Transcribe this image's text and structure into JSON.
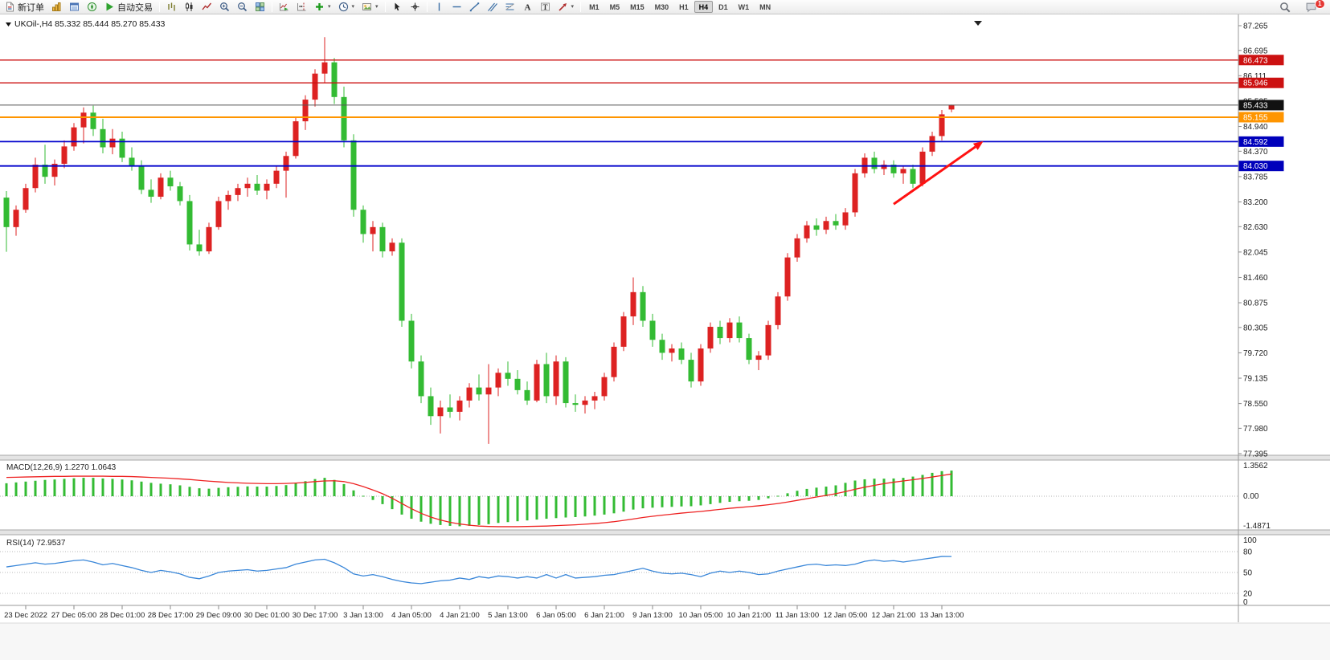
{
  "toolbar": {
    "new_order": "新订单",
    "auto_trading": "自动交易",
    "timeframes": [
      "M1",
      "M5",
      "M15",
      "M30",
      "H1",
      "H4",
      "D1",
      "W1",
      "MN"
    ],
    "active_timeframe": "H4",
    "notification_count": "1"
  },
  "chart_header": {
    "symbol_period": "UKOil-,H4",
    "ohlc": "85.332 85.444 85.270 85.433"
  },
  "chart_data": {
    "type": "candlestick",
    "symbol": "UKOil-",
    "timeframe": "H4",
    "price_axis": [
      87.265,
      86.695,
      86.111,
      85.525,
      84.94,
      84.37,
      83.785,
      83.2,
      82.63,
      82.045,
      81.46,
      80.875,
      80.305,
      79.72,
      79.135,
      78.55,
      77.98,
      77.395
    ],
    "levels": [
      {
        "price": 86.473,
        "color": "#cc1111",
        "badge": "#cc1111",
        "width": 1.4
      },
      {
        "price": 85.946,
        "color": "#cc1111",
        "badge": "#cc1111",
        "width": 1.4
      },
      {
        "price": 85.433,
        "color": "#555555",
        "badge": "#111111",
        "width": 1,
        "current": true
      },
      {
        "price": 85.155,
        "color": "#ff9500",
        "badge": "#ff9500",
        "width": 2
      },
      {
        "price": 84.592,
        "color": "#0000cc",
        "badge": "#0000bb",
        "width": 1.8
      },
      {
        "price": 84.03,
        "color": "#0000cc",
        "badge": "#0000bb",
        "width": 1.8
      }
    ],
    "current_price": 85.433,
    "candles": [
      [
        83.3,
        83.45,
        82.05,
        82.62
      ],
      [
        82.62,
        83.12,
        82.42,
        83.02
      ],
      [
        83.02,
        83.62,
        82.95,
        83.52
      ],
      [
        83.52,
        84.22,
        83.42,
        84.06
      ],
      [
        84.06,
        84.52,
        83.62,
        83.78
      ],
      [
        83.78,
        84.18,
        83.58,
        84.08
      ],
      [
        84.08,
        84.62,
        83.98,
        84.48
      ],
      [
        84.48,
        85.02,
        84.38,
        84.92
      ],
      [
        84.92,
        85.38,
        84.55,
        85.26
      ],
      [
        85.26,
        85.42,
        84.72,
        84.88
      ],
      [
        84.88,
        85.12,
        84.32,
        84.46
      ],
      [
        84.46,
        84.88,
        84.3,
        84.66
      ],
      [
        84.66,
        84.82,
        84.12,
        84.22
      ],
      [
        84.22,
        84.46,
        83.92,
        84.02
      ],
      [
        84.02,
        84.16,
        83.38,
        83.48
      ],
      [
        83.48,
        83.72,
        83.18,
        83.32
      ],
      [
        83.32,
        83.86,
        83.26,
        83.76
      ],
      [
        83.76,
        83.92,
        83.46,
        83.56
      ],
      [
        83.56,
        83.66,
        83.12,
        83.22
      ],
      [
        83.22,
        83.36,
        82.08,
        82.22
      ],
      [
        82.22,
        82.56,
        81.96,
        82.06
      ],
      [
        82.06,
        82.72,
        82.0,
        82.62
      ],
      [
        82.62,
        83.32,
        82.56,
        83.22
      ],
      [
        83.22,
        83.46,
        83.02,
        83.36
      ],
      [
        83.36,
        83.62,
        83.22,
        83.52
      ],
      [
        83.52,
        83.76,
        83.32,
        83.62
      ],
      [
        83.62,
        83.82,
        83.36,
        83.46
      ],
      [
        83.46,
        83.72,
        83.26,
        83.62
      ],
      [
        83.62,
        84.02,
        83.52,
        83.92
      ],
      [
        83.92,
        84.36,
        83.3,
        84.26
      ],
      [
        84.26,
        85.16,
        84.2,
        85.06
      ],
      [
        85.06,
        85.66,
        84.86,
        85.56
      ],
      [
        85.56,
        86.26,
        85.4,
        86.16
      ],
      [
        86.16,
        87.0,
        85.96,
        86.42
      ],
      [
        86.42,
        86.52,
        85.46,
        85.62
      ],
      [
        85.62,
        85.86,
        84.46,
        84.62
      ],
      [
        84.62,
        84.76,
        82.86,
        83.02
      ],
      [
        83.02,
        83.12,
        82.26,
        82.46
      ],
      [
        82.46,
        82.76,
        82.06,
        82.62
      ],
      [
        82.62,
        82.72,
        81.92,
        82.06
      ],
      [
        82.06,
        82.36,
        81.96,
        82.26
      ],
      [
        82.26,
        82.36,
        80.32,
        80.46
      ],
      [
        80.46,
        80.62,
        79.36,
        79.52
      ],
      [
        79.52,
        79.66,
        78.56,
        78.72
      ],
      [
        78.72,
        78.92,
        78.06,
        78.26
      ],
      [
        78.26,
        78.62,
        77.86,
        78.46
      ],
      [
        78.46,
        78.76,
        78.22,
        78.36
      ],
      [
        78.36,
        78.72,
        78.16,
        78.62
      ],
      [
        78.62,
        79.02,
        78.46,
        78.92
      ],
      [
        78.92,
        79.22,
        78.62,
        78.76
      ],
      [
        78.76,
        79.46,
        77.62,
        78.92
      ],
      [
        78.92,
        79.36,
        78.72,
        79.26
      ],
      [
        79.26,
        79.52,
        78.96,
        79.12
      ],
      [
        79.12,
        79.32,
        78.76,
        78.86
      ],
      [
        78.86,
        79.06,
        78.52,
        78.62
      ],
      [
        78.62,
        79.56,
        78.58,
        79.46
      ],
      [
        79.46,
        79.72,
        78.56,
        78.72
      ],
      [
        78.72,
        79.66,
        78.52,
        79.52
      ],
      [
        79.52,
        79.62,
        78.46,
        78.56
      ],
      [
        78.56,
        78.76,
        78.36,
        78.52
      ],
      [
        78.52,
        78.72,
        78.32,
        78.62
      ],
      [
        78.62,
        78.82,
        78.42,
        78.72
      ],
      [
        78.72,
        79.26,
        78.62,
        79.16
      ],
      [
        79.16,
        79.96,
        79.06,
        79.86
      ],
      [
        79.86,
        80.66,
        79.76,
        80.56
      ],
      [
        80.56,
        81.46,
        80.36,
        81.12
      ],
      [
        81.12,
        81.26,
        80.32,
        80.46
      ],
      [
        80.46,
        80.62,
        79.86,
        80.02
      ],
      [
        80.02,
        80.16,
        79.56,
        79.72
      ],
      [
        79.72,
        79.92,
        79.52,
        79.82
      ],
      [
        79.82,
        79.96,
        79.46,
        79.56
      ],
      [
        79.56,
        79.72,
        78.92,
        79.06
      ],
      [
        79.06,
        79.92,
        78.96,
        79.82
      ],
      [
        79.82,
        80.42,
        79.72,
        80.32
      ],
      [
        80.32,
        80.46,
        79.92,
        80.06
      ],
      [
        80.06,
        80.52,
        79.96,
        80.42
      ],
      [
        80.42,
        80.56,
        79.96,
        80.06
      ],
      [
        80.06,
        80.16,
        79.46,
        79.56
      ],
      [
        79.56,
        79.76,
        79.32,
        79.66
      ],
      [
        79.66,
        80.46,
        79.56,
        80.36
      ],
      [
        80.36,
        81.12,
        80.26,
        81.02
      ],
      [
        81.02,
        82.02,
        80.92,
        81.92
      ],
      [
        81.92,
        82.46,
        81.82,
        82.36
      ],
      [
        82.36,
        82.76,
        82.26,
        82.66
      ],
      [
        82.66,
        82.82,
        82.42,
        82.56
      ],
      [
        82.56,
        82.86,
        82.46,
        82.76
      ],
      [
        82.76,
        82.92,
        82.56,
        82.66
      ],
      [
        82.66,
        83.06,
        82.56,
        82.96
      ],
      [
        82.96,
        83.96,
        82.86,
        83.86
      ],
      [
        83.86,
        84.32,
        83.76,
        84.22
      ],
      [
        84.22,
        84.36,
        83.86,
        83.96
      ],
      [
        83.96,
        84.16,
        83.82,
        84.06
      ],
      [
        84.06,
        84.16,
        83.76,
        83.86
      ],
      [
        83.86,
        84.02,
        83.62,
        83.96
      ],
      [
        83.96,
        84.06,
        83.52,
        83.62
      ],
      [
        83.62,
        84.46,
        83.56,
        84.36
      ],
      [
        84.36,
        84.82,
        84.26,
        84.72
      ],
      [
        84.72,
        85.32,
        84.62,
        85.22
      ],
      [
        85.332,
        85.444,
        85.27,
        85.433
      ]
    ],
    "time_labels": [
      {
        "i": 2,
        "t": "23 Dec 2022"
      },
      {
        "i": 7,
        "t": "27 Dec 05:00"
      },
      {
        "i": 12,
        "t": "28 Dec 01:00"
      },
      {
        "i": 17,
        "t": "28 Dec 17:00"
      },
      {
        "i": 22,
        "t": "29 Dec 09:00"
      },
      {
        "i": 27,
        "t": "30 Dec 01:00"
      },
      {
        "i": 32,
        "t": "30 Dec 17:00"
      },
      {
        "i": 37,
        "t": "3 Jan 13:00"
      },
      {
        "i": 42,
        "t": "4 Jan 05:00"
      },
      {
        "i": 47,
        "t": "4 Jan 21:00"
      },
      {
        "i": 52,
        "t": "5 Jan 13:00"
      },
      {
        "i": 57,
        "t": "6 Jan 05:00"
      },
      {
        "i": 62,
        "t": "6 Jan 21:00"
      },
      {
        "i": 67,
        "t": "9 Jan 13:00"
      },
      {
        "i": 72,
        "t": "10 Jan 05:00"
      },
      {
        "i": 77,
        "t": "10 Jan 21:00"
      },
      {
        "i": 82,
        "t": "11 Jan 13:00"
      },
      {
        "i": 87,
        "t": "12 Jan 05:00"
      },
      {
        "i": 92,
        "t": "12 Jan 21:00"
      },
      {
        "i": 97,
        "t": "13 Jan 13:00"
      }
    ],
    "macd": {
      "label": "MACD(12,26,9)",
      "values": "1.2270 1.0643",
      "axis": [
        "1.3562",
        "0.00",
        "-1.4871"
      ],
      "hist": [
        0.62,
        0.66,
        0.7,
        0.74,
        0.78,
        0.8,
        0.83,
        0.86,
        0.88,
        0.88,
        0.85,
        0.83,
        0.8,
        0.76,
        0.7,
        0.64,
        0.6,
        0.57,
        0.52,
        0.45,
        0.38,
        0.36,
        0.4,
        0.43,
        0.45,
        0.47,
        0.46,
        0.46,
        0.49,
        0.53,
        0.62,
        0.72,
        0.82,
        0.88,
        0.78,
        0.58,
        0.28,
        0.02,
        -0.18,
        -0.38,
        -0.62,
        -0.88,
        -1.08,
        -1.22,
        -1.32,
        -1.38,
        -1.42,
        -1.44,
        -1.42,
        -1.38,
        -1.34,
        -1.28,
        -1.24,
        -1.2,
        -1.16,
        -1.12,
        -1.08,
        -1.05,
        -1.02,
        -1.0,
        -0.97,
        -0.93,
        -0.88,
        -0.82,
        -0.74,
        -0.64,
        -0.58,
        -0.55,
        -0.53,
        -0.51,
        -0.49,
        -0.48,
        -0.44,
        -0.38,
        -0.32,
        -0.27,
        -0.24,
        -0.22,
        -0.18,
        -0.1,
        0.02,
        0.14,
        0.26,
        0.35,
        0.41,
        0.46,
        0.52,
        0.64,
        0.75,
        0.81,
        0.84,
        0.84,
        0.85,
        0.88,
        0.94,
        1.02,
        1.12,
        1.2,
        1.227
      ],
      "signal": [
        0.9,
        0.91,
        0.92,
        0.93,
        0.94,
        0.95,
        0.95,
        0.96,
        0.96,
        0.96,
        0.96,
        0.95,
        0.95,
        0.94,
        0.92,
        0.9,
        0.88,
        0.86,
        0.83,
        0.8,
        0.76,
        0.72,
        0.69,
        0.66,
        0.64,
        0.62,
        0.61,
        0.6,
        0.6,
        0.61,
        0.63,
        0.66,
        0.7,
        0.73,
        0.74,
        0.7,
        0.6,
        0.46,
        0.3,
        0.12,
        -0.1,
        -0.35,
        -0.6,
        -0.82,
        -1.0,
        -1.14,
        -1.25,
        -1.33,
        -1.39,
        -1.43,
        -1.45,
        -1.46,
        -1.46,
        -1.46,
        -1.45,
        -1.44,
        -1.43,
        -1.41,
        -1.39,
        -1.37,
        -1.34,
        -1.31,
        -1.27,
        -1.22,
        -1.16,
        -1.09,
        -1.02,
        -0.96,
        -0.91,
        -0.86,
        -0.81,
        -0.77,
        -0.73,
        -0.68,
        -0.63,
        -0.58,
        -0.54,
        -0.5,
        -0.46,
        -0.41,
        -0.35,
        -0.28,
        -0.2,
        -0.12,
        -0.04,
        0.04,
        0.12,
        0.22,
        0.33,
        0.43,
        0.52,
        0.6,
        0.67,
        0.73,
        0.79,
        0.85,
        0.92,
        0.99,
        1.0643
      ]
    },
    "rsi": {
      "label": "RSI(14)",
      "value": "72.9537",
      "axis": [
        100,
        80,
        50,
        20,
        0
      ],
      "dashed_levels": [
        80,
        50,
        20
      ],
      "values": [
        58,
        60,
        62,
        64,
        62,
        63,
        65,
        67,
        68,
        65,
        61,
        63,
        60,
        57,
        53,
        50,
        53,
        51,
        48,
        43,
        41,
        45,
        50,
        52,
        53,
        54,
        52,
        53,
        55,
        57,
        62,
        65,
        68,
        69,
        64,
        57,
        48,
        45,
        47,
        44,
        40,
        37,
        35,
        34,
        36,
        38,
        39,
        42,
        40,
        44,
        42,
        45,
        44,
        42,
        44,
        42,
        47,
        42,
        47,
        42,
        43,
        44,
        46,
        47,
        50,
        53,
        56,
        52,
        49,
        48,
        49,
        47,
        44,
        49,
        52,
        50,
        52,
        50,
        47,
        48,
        52,
        55,
        58,
        61,
        62,
        60,
        61,
        60,
        62,
        66,
        68,
        66,
        67,
        65,
        67,
        69,
        71,
        73,
        72.95
      ]
    },
    "annotation": {
      "type": "trend-arrow",
      "color": "#ff1111",
      "from_index": 92,
      "from_price": 83.15,
      "to_index": 101.3,
      "to_price": 84.6
    },
    "colors": {
      "bull": "#dd2222",
      "bear": "#33bb33",
      "macd_hist": "#33bb33",
      "macd_signal": "#ee2222",
      "rsi_line": "#3a87d9"
    }
  }
}
